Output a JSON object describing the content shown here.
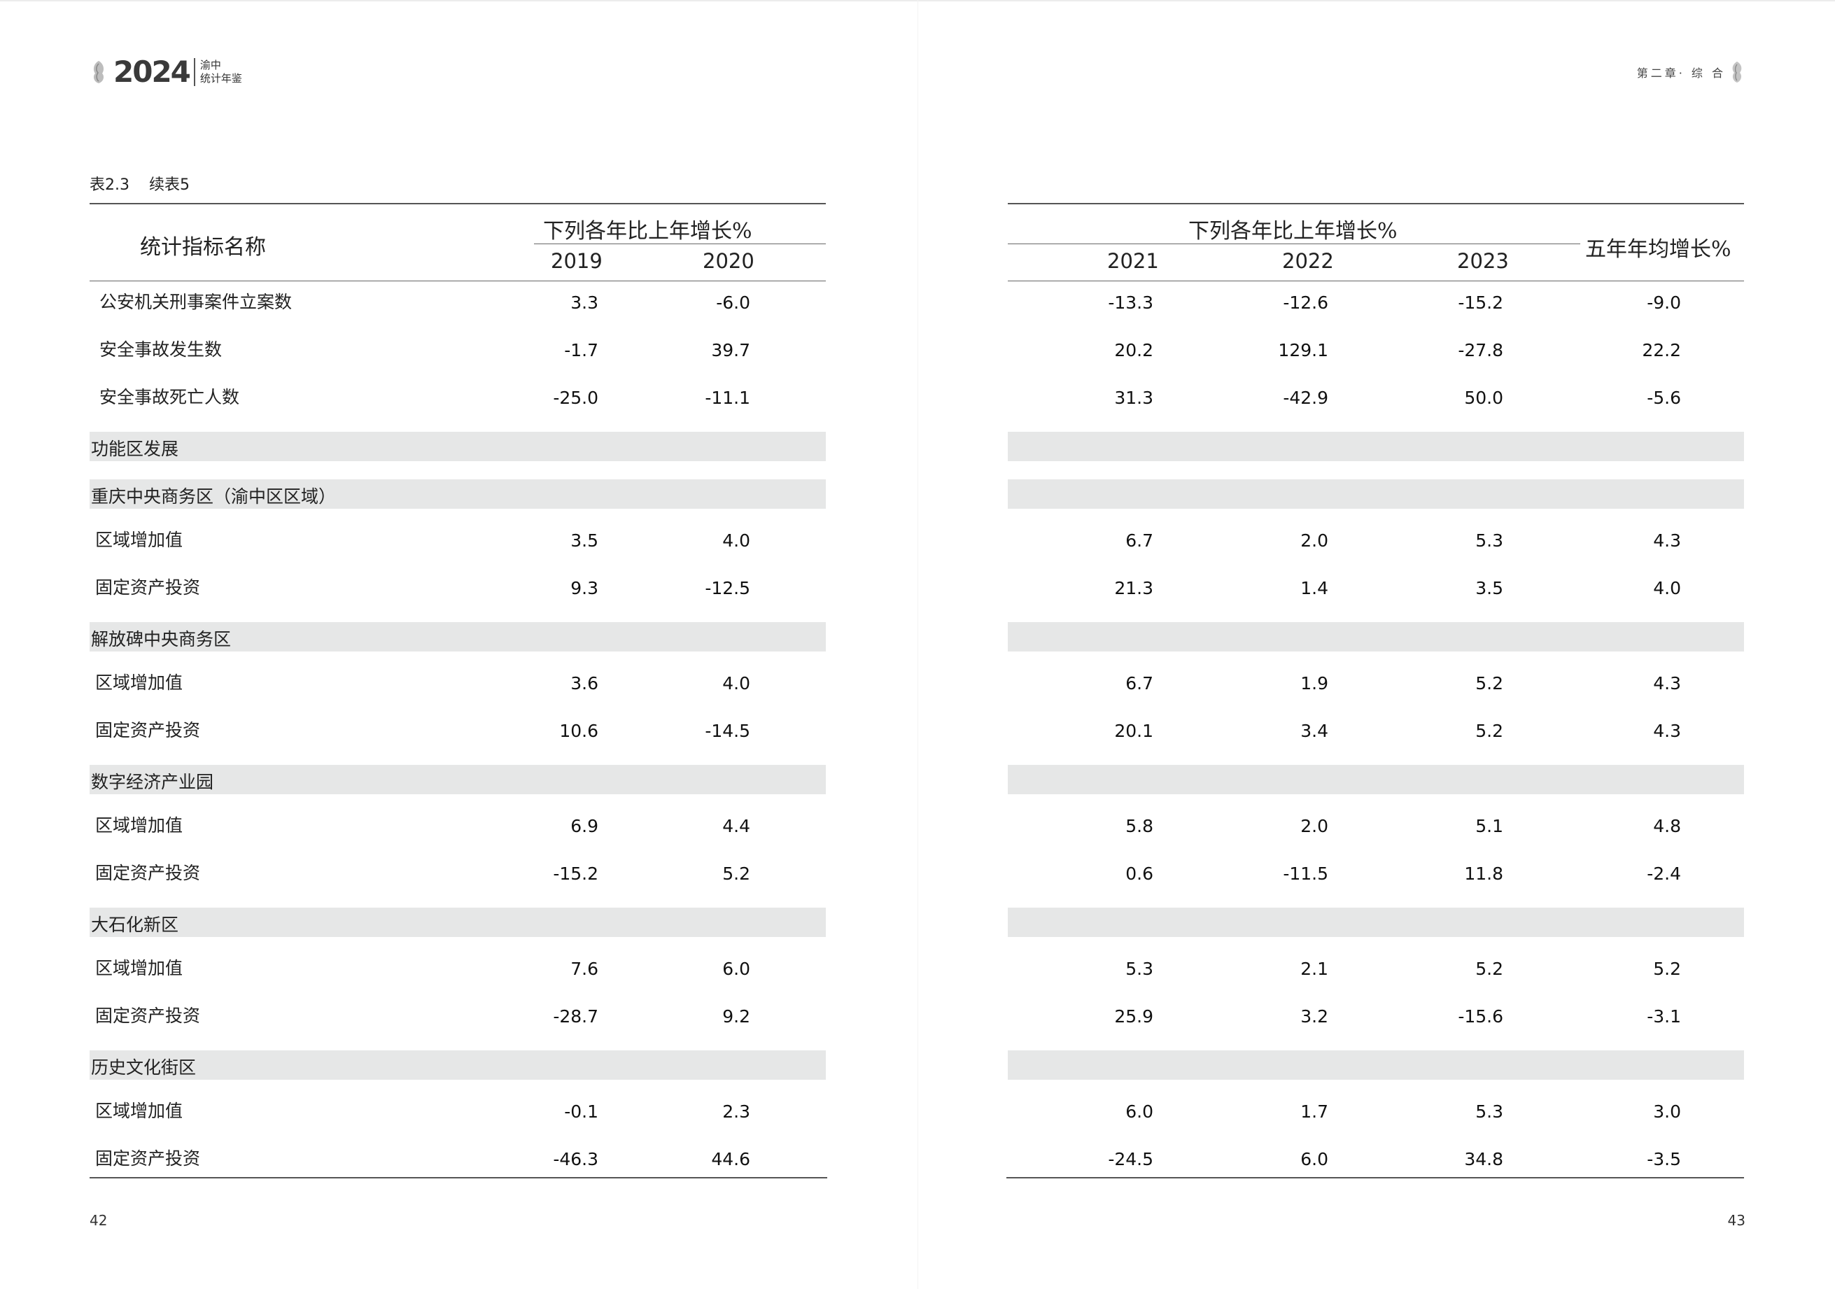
{
  "header": {
    "year": "2024",
    "yearbook_line1": "渝中",
    "yearbook_line2": "统计年鉴",
    "chapter": "第二章· 综  合"
  },
  "table": {
    "label": "表2.3",
    "continued": "续表5",
    "col_indicator": "统计指标名称",
    "group_header": "下列各年比上年增长%",
    "avg_header": "五年年均增长%",
    "years_left": [
      "2019",
      "2020"
    ],
    "years_right": [
      "2021",
      "2022",
      "2023"
    ],
    "rows": [
      {
        "type": "data",
        "label": "公安机关刑事案件立案数",
        "v2019": "3.3",
        "v2020": "-6.0",
        "v2021": "-13.3",
        "v2022": "-12.6",
        "v2023": "-15.2",
        "avg": "-9.0"
      },
      {
        "type": "data",
        "label": "安全事故发生数",
        "v2019": "-1.7",
        "v2020": "39.7",
        "v2021": "20.2",
        "v2022": "129.1",
        "v2023": "-27.8",
        "avg": "22.2"
      },
      {
        "type": "data",
        "label": "安全事故死亡人数",
        "v2019": "-25.0",
        "v2020": "-11.1",
        "v2021": "31.3",
        "v2022": "-42.9",
        "v2023": "50.0",
        "avg": "-5.6"
      },
      {
        "type": "group",
        "label": "功能区发展"
      },
      {
        "type": "group",
        "label": "重庆中央商务区（渝中区区域）"
      },
      {
        "type": "data",
        "label": "区域增加值",
        "v2019": "3.5",
        "v2020": "4.0",
        "v2021": "6.7",
        "v2022": "2.0",
        "v2023": "5.3",
        "avg": "4.3"
      },
      {
        "type": "data",
        "label": "固定资产投资",
        "v2019": "9.3",
        "v2020": "-12.5",
        "v2021": "21.3",
        "v2022": "1.4",
        "v2023": "3.5",
        "avg": "4.0"
      },
      {
        "type": "group",
        "label": "解放碑中央商务区"
      },
      {
        "type": "data",
        "label": "区域增加值",
        "v2019": "3.6",
        "v2020": "4.0",
        "v2021": "6.7",
        "v2022": "1.9",
        "v2023": "5.2",
        "avg": "4.3"
      },
      {
        "type": "data",
        "label": "固定资产投资",
        "v2019": "10.6",
        "v2020": "-14.5",
        "v2021": "20.1",
        "v2022": "3.4",
        "v2023": "5.2",
        "avg": "4.3"
      },
      {
        "type": "group",
        "label": "数字经济产业园"
      },
      {
        "type": "data",
        "label": "区域增加值",
        "v2019": "6.9",
        "v2020": "4.4",
        "v2021": "5.8",
        "v2022": "2.0",
        "v2023": "5.1",
        "avg": "4.8"
      },
      {
        "type": "data",
        "label": "固定资产投资",
        "v2019": "-15.2",
        "v2020": "5.2",
        "v2021": "0.6",
        "v2022": "-11.5",
        "v2023": "11.8",
        "avg": "-2.4"
      },
      {
        "type": "group",
        "label": "大石化新区"
      },
      {
        "type": "data",
        "label": "区域增加值",
        "v2019": "7.6",
        "v2020": "6.0",
        "v2021": "5.3",
        "v2022": "2.1",
        "v2023": "5.2",
        "avg": "5.2"
      },
      {
        "type": "data",
        "label": "固定资产投资",
        "v2019": "-28.7",
        "v2020": "9.2",
        "v2021": "25.9",
        "v2022": "3.2",
        "v2023": "-15.6",
        "avg": "-3.1"
      },
      {
        "type": "group",
        "label": "历史文化街区"
      },
      {
        "type": "data",
        "label": "区域增加值",
        "v2019": "-0.1",
        "v2020": "2.3",
        "v2021": "6.0",
        "v2022": "1.7",
        "v2023": "5.3",
        "avg": "3.0"
      },
      {
        "type": "data",
        "label": "固定资产投资",
        "v2019": "-46.3",
        "v2020": "44.6",
        "v2021": "-24.5",
        "v2022": "6.0",
        "v2023": "34.8",
        "avg": "-3.5"
      }
    ]
  },
  "footer": {
    "page_left": "42",
    "page_right": "43"
  }
}
